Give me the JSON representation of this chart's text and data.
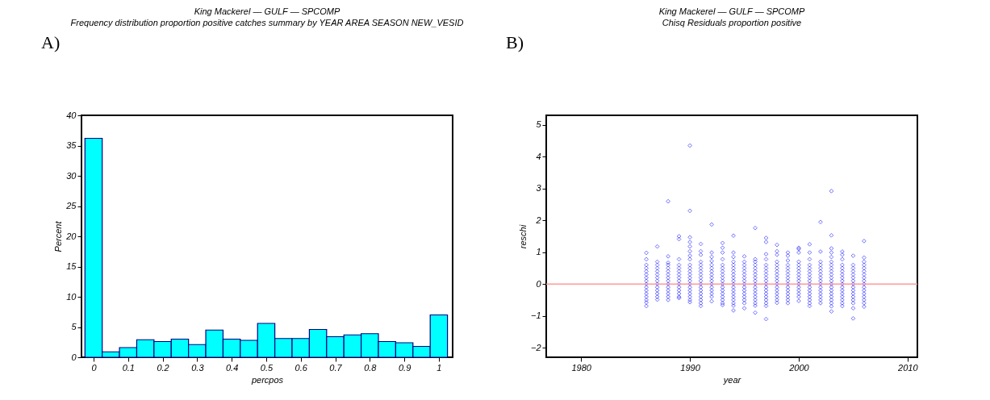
{
  "chart_data": [
    {
      "type": "histogram",
      "title": "King Mackerel — GULF — SPCOMP",
      "subtitle": "Frequency distribution proportion positive catches summary by YEAR AREA SEASON NEW_VESID",
      "xlabel": "percpos",
      "ylabel": "Percent",
      "annotations": [
        "A)"
      ],
      "bins": [
        -0.025,
        0.025,
        0.075,
        0.125,
        0.175,
        0.225,
        0.275,
        0.325,
        0.375,
        0.425,
        0.475,
        0.525,
        0.575,
        0.625,
        0.675,
        0.725,
        0.775,
        0.825,
        0.875,
        0.925,
        0.975,
        1.025
      ],
      "values": [
        36.2,
        0.9,
        1.6,
        2.9,
        2.6,
        3.0,
        2.1,
        4.5,
        3.0,
        2.8,
        5.6,
        3.1,
        3.1,
        4.6,
        3.4,
        3.7,
        3.9,
        2.6,
        2.4,
        1.8,
        7.0
      ],
      "color": "#00ffff",
      "xlim": [
        -0.035,
        1.04
      ],
      "ylim": [
        0,
        40
      ],
      "xticks": [
        0,
        0.1,
        0.2,
        0.3,
        0.4,
        0.5,
        0.6,
        0.7,
        0.8,
        0.9,
        1
      ],
      "yticks": [
        0,
        5,
        10,
        15,
        20,
        25,
        30,
        35,
        40
      ]
    },
    {
      "type": "scatter",
      "title": "King Mackerel — GULF — SPCOMP",
      "subtitle": "Chisq Residuals proportion positive",
      "xlabel": "year",
      "ylabel": "reschi",
      "annotations": [
        "B)"
      ],
      "marker": "diamond",
      "xlim": [
        1976.8,
        2010.9
      ],
      "ylim": [
        -2.3,
        5.3
      ],
      "xticks": [
        1980,
        1990,
        2000,
        2010
      ],
      "yticks": [
        -2,
        -1,
        0,
        1,
        2,
        3,
        4,
        5
      ],
      "ref_lines": [
        {
          "axis": "y",
          "value": 0,
          "color": "#ff9999"
        }
      ],
      "series": [
        {
          "color": "#0000ff",
          "x": [
            1986,
            1986,
            1986,
            1986,
            1986,
            1986,
            1986,
            1986,
            1986,
            1986,
            1986,
            1986,
            1986,
            1986,
            1986,
            1986
          ],
          "values": [
            0.98,
            0.78,
            0.6,
            0.5,
            0.4,
            0.3,
            0.2,
            0.1,
            0,
            -0.1,
            -0.2,
            -0.3,
            -0.4,
            -0.5,
            -0.58,
            -0.69
          ]
        },
        {
          "color": "#0000ff",
          "x": [
            1987,
            1987,
            1987,
            1987,
            1987,
            1987,
            1987,
            1987,
            1987,
            1987,
            1987,
            1987,
            1987,
            1987
          ],
          "values": [
            1.18,
            0.7,
            0.6,
            0.5,
            0.4,
            0.3,
            0.2,
            0.1,
            0,
            -0.1,
            -0.2,
            -0.3,
            -0.4,
            -0.49
          ]
        },
        {
          "color": "#0000ff",
          "x": [
            1988,
            1988,
            1988,
            1988,
            1988,
            1988,
            1988,
            1988,
            1988,
            1988,
            1988,
            1988,
            1988,
            1988,
            1988
          ],
          "values": [
            2.6,
            0.87,
            0.67,
            0.6,
            0.5,
            0.4,
            0.3,
            0.2,
            0.1,
            0,
            -0.1,
            -0.2,
            -0.3,
            -0.4,
            -0.5
          ]
        },
        {
          "color": "#0000ff",
          "x": [
            1989,
            1989,
            1989,
            1989,
            1989,
            1989,
            1989,
            1989,
            1989,
            1989,
            1989,
            1989,
            1989,
            1989,
            1989
          ],
          "values": [
            1.5,
            1.41,
            0.78,
            0.6,
            0.5,
            0.4,
            0.3,
            0.2,
            0.1,
            0,
            -0.1,
            -0.2,
            -0.3,
            -0.4,
            -0.44
          ]
        },
        {
          "color": "#0000ff",
          "x": [
            1990,
            1990,
            1990,
            1990,
            1990,
            1990,
            1990,
            1990,
            1990,
            1990,
            1990,
            1990,
            1990,
            1990,
            1990,
            1990,
            1990,
            1990,
            1990,
            1990,
            1990
          ],
          "values": [
            4.35,
            2.3,
            1.47,
            1.32,
            1.18,
            1.03,
            0.89,
            0.78,
            0.6,
            0.5,
            0.4,
            0.3,
            0.2,
            0.1,
            0,
            -0.1,
            -0.2,
            -0.3,
            -0.4,
            -0.5,
            -0.57
          ]
        },
        {
          "color": "#0000ff",
          "x": [
            1991,
            1991,
            1991,
            1991,
            1991,
            1991,
            1991,
            1991,
            1991,
            1991,
            1991,
            1991,
            1991,
            1991,
            1991,
            1991,
            1991,
            1991
          ],
          "values": [
            1.26,
            1.03,
            0.92,
            0.7,
            0.6,
            0.5,
            0.4,
            0.3,
            0.2,
            0.1,
            0,
            -0.1,
            -0.2,
            -0.3,
            -0.4,
            -0.5,
            -0.6,
            -0.69
          ]
        },
        {
          "color": "#0000ff",
          "x": [
            1992,
            1992,
            1992,
            1992,
            1992,
            1992,
            1992,
            1992,
            1992,
            1992,
            1992,
            1992,
            1992,
            1992,
            1992,
            1992
          ],
          "values": [
            1.87,
            0.99,
            0.85,
            0.72,
            0.6,
            0.5,
            0.4,
            0.3,
            0.2,
            0.1,
            0,
            -0.1,
            -0.2,
            -0.3,
            -0.4,
            -0.54
          ]
        },
        {
          "color": "#0000ff",
          "x": [
            1993,
            1993,
            1993,
            1993,
            1993,
            1993,
            1993,
            1993,
            1993,
            1993,
            1993,
            1993,
            1993,
            1993,
            1993,
            1993,
            1993,
            1993
          ],
          "values": [
            1.29,
            1.14,
            0.99,
            0.78,
            0.6,
            0.5,
            0.4,
            0.3,
            0.2,
            0.1,
            0,
            -0.1,
            -0.2,
            -0.3,
            -0.4,
            -0.5,
            -0.6,
            -0.66
          ]
        },
        {
          "color": "#0000ff",
          "x": [
            1994,
            1994,
            1994,
            1994,
            1994,
            1994,
            1994,
            1994,
            1994,
            1994,
            1994,
            1994,
            1994,
            1994,
            1994,
            1994,
            1994,
            1994,
            1994
          ],
          "values": [
            1.52,
            0.99,
            0.85,
            0.7,
            0.6,
            0.5,
            0.4,
            0.3,
            0.2,
            0.1,
            0,
            -0.1,
            -0.2,
            -0.3,
            -0.4,
            -0.5,
            -0.6,
            -0.68,
            -0.83
          ]
        },
        {
          "color": "#0000ff",
          "x": [
            1995,
            1995,
            1995,
            1995,
            1995,
            1995,
            1995,
            1995,
            1995,
            1995,
            1995,
            1995,
            1995,
            1995,
            1995,
            1995
          ],
          "values": [
            0.87,
            0.7,
            0.6,
            0.5,
            0.4,
            0.3,
            0.2,
            0.1,
            0,
            -0.1,
            -0.2,
            -0.3,
            -0.4,
            -0.5,
            -0.6,
            -0.76
          ]
        },
        {
          "color": "#0000ff",
          "x": [
            1996,
            1996,
            1996,
            1996,
            1996,
            1996,
            1996,
            1996,
            1996,
            1996,
            1996,
            1996,
            1996,
            1996,
            1996,
            1996,
            1996,
            1996
          ],
          "values": [
            1.76,
            0.78,
            0.7,
            0.6,
            0.5,
            0.4,
            0.3,
            0.2,
            0.1,
            0,
            -0.1,
            -0.2,
            -0.3,
            -0.4,
            -0.5,
            -0.6,
            -0.68,
            -0.9
          ]
        },
        {
          "color": "#0000ff",
          "x": [
            1997,
            1997,
            1997,
            1997,
            1997,
            1997,
            1997,
            1997,
            1997,
            1997,
            1997,
            1997,
            1997,
            1997,
            1997,
            1997,
            1997,
            1997,
            1997
          ],
          "values": [
            1.45,
            1.32,
            0.94,
            0.78,
            0.6,
            0.5,
            0.4,
            0.3,
            0.2,
            0.1,
            0,
            -0.1,
            -0.2,
            -0.3,
            -0.4,
            -0.5,
            -0.6,
            -0.69,
            -1.1
          ]
        },
        {
          "color": "#0000ff",
          "x": [
            1998,
            1998,
            1998,
            1998,
            1998,
            1998,
            1998,
            1998,
            1998,
            1998,
            1998,
            1998,
            1998,
            1998,
            1998,
            1998,
            1998
          ],
          "values": [
            1.23,
            1.03,
            0.92,
            0.7,
            0.6,
            0.5,
            0.4,
            0.3,
            0.2,
            0.1,
            0,
            -0.1,
            -0.2,
            -0.3,
            -0.4,
            -0.5,
            -0.59
          ]
        },
        {
          "color": "#0000ff",
          "x": [
            1999,
            1999,
            1999,
            1999,
            1999,
            1999,
            1999,
            1999,
            1999,
            1999,
            1999,
            1999,
            1999,
            1999,
            1999,
            1999
          ],
          "values": [
            0.99,
            0.89,
            0.74,
            0.6,
            0.5,
            0.4,
            0.3,
            0.2,
            0.1,
            0,
            -0.1,
            -0.2,
            -0.3,
            -0.4,
            -0.5,
            -0.6
          ]
        },
        {
          "color": "#0000ff",
          "x": [
            2000,
            2000,
            2000,
            2000,
            2000,
            2000,
            2000,
            2000,
            2000,
            2000,
            2000,
            2000,
            2000,
            2000,
            2000,
            2000
          ],
          "values": [
            1.14,
            1.1,
            0.99,
            0.7,
            0.6,
            0.5,
            0.4,
            0.3,
            0.2,
            0.1,
            0,
            -0.1,
            -0.2,
            -0.3,
            -0.4,
            -0.53
          ]
        },
        {
          "color": "#0000ff",
          "x": [
            2001,
            2001,
            2001,
            2001,
            2001,
            2001,
            2001,
            2001,
            2001,
            2001,
            2001,
            2001,
            2001,
            2001,
            2001,
            2001,
            2001
          ],
          "values": [
            1.25,
            0.99,
            0.78,
            0.6,
            0.5,
            0.4,
            0.3,
            0.2,
            0.1,
            0,
            -0.1,
            -0.2,
            -0.3,
            -0.4,
            -0.5,
            -0.6,
            -0.69
          ]
        },
        {
          "color": "#0000ff",
          "x": [
            2002,
            2002,
            2002,
            2002,
            2002,
            2002,
            2002,
            2002,
            2002,
            2002,
            2002,
            2002,
            2002,
            2002,
            2002,
            2002
          ],
          "values": [
            1.95,
            1.02,
            0.7,
            0.6,
            0.5,
            0.4,
            0.3,
            0.2,
            0.1,
            0,
            -0.1,
            -0.2,
            -0.3,
            -0.4,
            -0.5,
            -0.6
          ]
        },
        {
          "color": "#0000ff",
          "x": [
            2003,
            2003,
            2003,
            2003,
            2003,
            2003,
            2003,
            2003,
            2003,
            2003,
            2003,
            2003,
            2003,
            2003,
            2003,
            2003,
            2003,
            2003,
            2003,
            2003,
            2003
          ],
          "values": [
            2.92,
            1.53,
            1.12,
            0.99,
            0.85,
            0.7,
            0.6,
            0.5,
            0.4,
            0.3,
            0.2,
            0.1,
            0,
            -0.1,
            -0.2,
            -0.3,
            -0.4,
            -0.5,
            -0.6,
            -0.7,
            -0.86
          ]
        },
        {
          "color": "#0000ff",
          "x": [
            2004,
            2004,
            2004,
            2004,
            2004,
            2004,
            2004,
            2004,
            2004,
            2004,
            2004,
            2004,
            2004,
            2004,
            2004,
            2004,
            2004
          ],
          "values": [
            1.02,
            0.92,
            0.78,
            0.6,
            0.5,
            0.4,
            0.3,
            0.2,
            0.1,
            0,
            -0.1,
            -0.2,
            -0.3,
            -0.4,
            -0.5,
            -0.6,
            -0.69
          ]
        },
        {
          "color": "#0000ff",
          "x": [
            2005,
            2005,
            2005,
            2005,
            2005,
            2005,
            2005,
            2005,
            2005,
            2005,
            2005,
            2005,
            2005,
            2005,
            2005,
            2005
          ],
          "values": [
            0.89,
            0.6,
            0.5,
            0.4,
            0.3,
            0.2,
            0.1,
            0,
            -0.1,
            -0.2,
            -0.3,
            -0.4,
            -0.5,
            -0.6,
            -0.76,
            -1.08
          ]
        },
        {
          "color": "#0000ff",
          "x": [
            2006,
            2006,
            2006,
            2006,
            2006,
            2006,
            2006,
            2006,
            2006,
            2006,
            2006,
            2006,
            2006,
            2006,
            2006,
            2006,
            2006
          ],
          "values": [
            1.35,
            0.83,
            0.7,
            0.6,
            0.5,
            0.4,
            0.3,
            0.2,
            0.1,
            0,
            -0.1,
            -0.2,
            -0.3,
            -0.4,
            -0.5,
            -0.6,
            -0.71
          ]
        }
      ]
    }
  ]
}
